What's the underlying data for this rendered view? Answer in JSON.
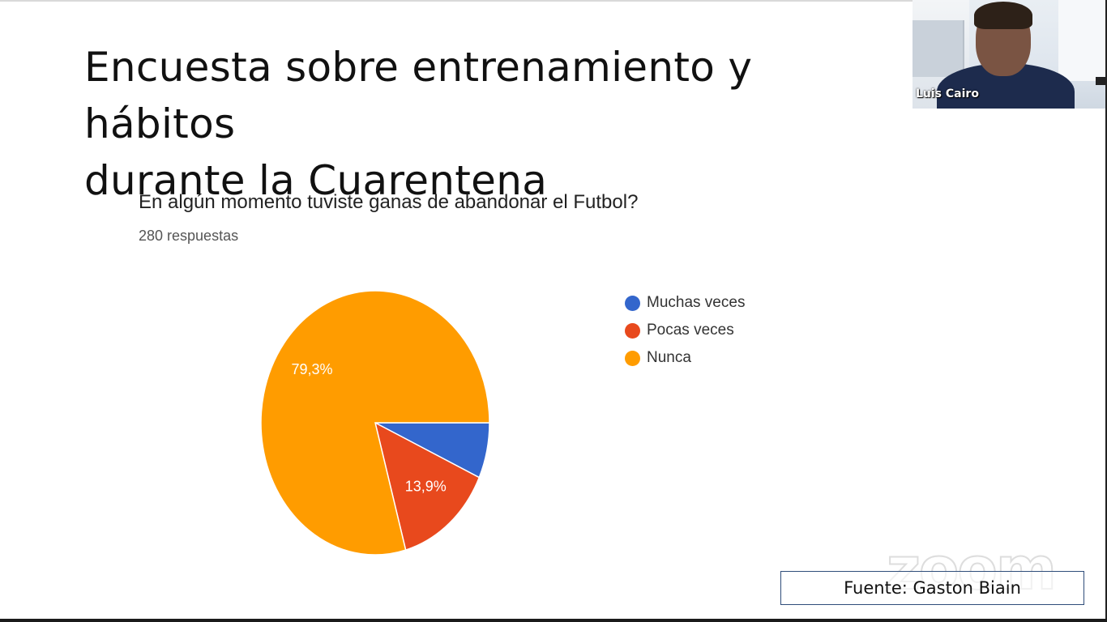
{
  "slide": {
    "title_line1": "Encuesta sobre entrenamiento y hábitos",
    "title_line2": "durante la Cuarentena",
    "source": "Fuente: Gaston Biain"
  },
  "survey": {
    "question": "En algún momento tuviste ganas de abandonar el Futbol?",
    "responses": "280 respuestas"
  },
  "video": {
    "participant_name": "Luis Cairo",
    "watermark": "zoom"
  },
  "colors": {
    "muchas": "#3366cc",
    "pocas": "#e8491d",
    "nunca": "#ff9c00"
  },
  "chart_data": {
    "type": "pie",
    "legend_position": "right",
    "slices": [
      {
        "label": "Muchas veces",
        "value": 6.8,
        "color": "#3366cc",
        "data_label": ""
      },
      {
        "label": "Pocas veces",
        "value": 13.9,
        "color": "#e8491d",
        "data_label": "13,9%"
      },
      {
        "label": "Nunca",
        "value": 79.3,
        "color": "#ff9c00",
        "data_label": "79,3%"
      }
    ]
  }
}
